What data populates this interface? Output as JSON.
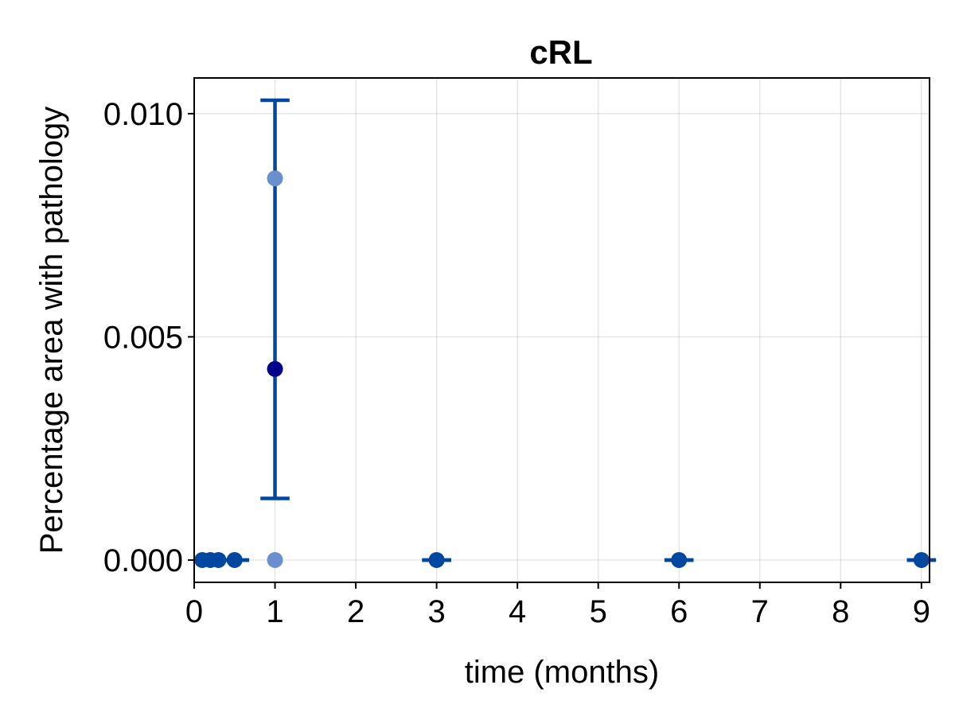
{
  "chart_data": {
    "type": "scatter",
    "title": "cRL",
    "xlabel": "time (months)",
    "ylabel": "Percentage area with pathology",
    "xlim": [
      0,
      9.1
    ],
    "ylim": [
      -0.0005,
      0.0108
    ],
    "xticks": [
      0,
      1,
      2,
      3,
      4,
      5,
      6,
      7,
      8,
      9
    ],
    "xtick_labels": [
      "0",
      "1",
      "2",
      "3",
      "4",
      "5",
      "6",
      "7",
      "8",
      "9"
    ],
    "yticks": [
      0,
      0.005,
      0.01
    ],
    "ytick_labels": [
      "0.000",
      "0.005",
      "0.010"
    ],
    "grid": true,
    "error_bar_color": "#0047a0",
    "mean_color": "#0047a0",
    "mean_highlight_color": "#00008b",
    "point_color": "#6a8fcf",
    "means": [
      {
        "x": 0.1,
        "y": 0
      },
      {
        "x": 0.2,
        "y": 0
      },
      {
        "x": 0.3,
        "y": 0
      },
      {
        "x": 0.5,
        "y": 0
      },
      {
        "x": 1,
        "y": 0.00428
      },
      {
        "x": 3,
        "y": 0
      },
      {
        "x": 6,
        "y": 0
      },
      {
        "x": 9,
        "y": 0
      }
    ],
    "error_bars": [
      {
        "x": 0.5,
        "low": 0,
        "high": 0,
        "cap_width": 0.18
      },
      {
        "x": 1,
        "low": 0.00138,
        "high": 0.0103,
        "cap_width": 0.18
      },
      {
        "x": 3,
        "low": 0,
        "high": 0,
        "cap_width": 0.18
      },
      {
        "x": 6,
        "low": 0,
        "high": 0,
        "cap_width": 0.18
      },
      {
        "x": 9,
        "low": 0,
        "high": 0,
        "cap_width": 0.18
      }
    ],
    "individual_points": [
      {
        "x": 1,
        "y": 0.00855
      },
      {
        "x": 1,
        "y": 0
      }
    ]
  }
}
